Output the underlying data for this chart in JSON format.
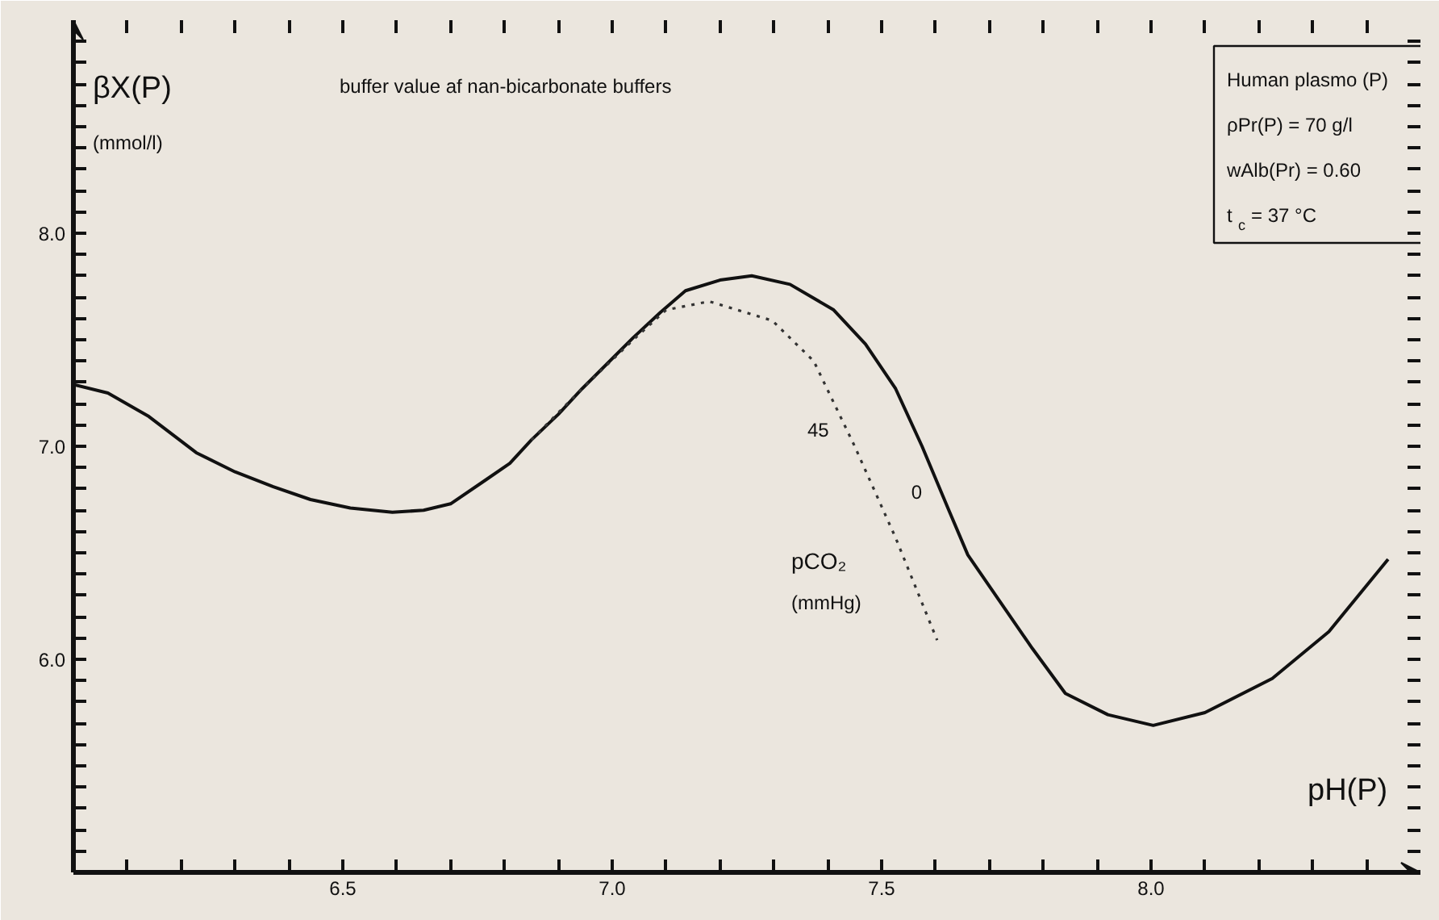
{
  "chart_data": {
    "type": "line",
    "title": "buffer value af nan-bicarbonate buffers",
    "xlabel": "pH(P)",
    "ylabel": "βX(P)\n(mmol/l)",
    "legend_title": "pCO₂\n(mmHg)",
    "annotations": [
      "Human plasmo (P)",
      "ρPr(P) = 70 g/l",
      "wAlb(Pr) = 0.60",
      "t$_{c}$ = 37 °C"
    ],
    "xlim": [
      6.0,
      8.5
    ],
    "ylim": [
      5.0,
      9.0
    ],
    "xticks": [
      {
        "value": 6.1,
        "label": null
      },
      {
        "value": 6.2,
        "label": null
      },
      {
        "value": 6.3,
        "label": null
      },
      {
        "value": 6.4,
        "label": null
      },
      {
        "value": 6.5,
        "label": "6.5"
      },
      {
        "value": 6.6,
        "label": null
      },
      {
        "value": 6.7,
        "label": null
      },
      {
        "value": 6.8,
        "label": null
      },
      {
        "value": 6.9,
        "label": null
      },
      {
        "value": 7.0,
        "label": "7.0"
      },
      {
        "value": 7.1,
        "label": null
      },
      {
        "value": 7.2,
        "label": null
      },
      {
        "value": 7.3,
        "label": null
      },
      {
        "value": 7.4,
        "label": null
      },
      {
        "value": 7.5,
        "label": "7.5"
      },
      {
        "value": 7.6,
        "label": null
      },
      {
        "value": 7.7,
        "label": null
      },
      {
        "value": 7.8,
        "label": null
      },
      {
        "value": 7.9,
        "label": null
      },
      {
        "value": 8.0,
        "label": "8.0"
      },
      {
        "value": 8.1,
        "label": null
      },
      {
        "value": 8.2,
        "label": null
      },
      {
        "value": 8.3,
        "label": null
      },
      {
        "value": 8.4,
        "label": null
      }
    ],
    "yticks": [
      {
        "value": 5.1,
        "label": null
      },
      {
        "value": 5.2,
        "label": null
      },
      {
        "value": 5.3,
        "label": null
      },
      {
        "value": 5.4,
        "label": null
      },
      {
        "value": 5.5,
        "label": null
      },
      {
        "value": 5.6,
        "label": null
      },
      {
        "value": 5.7,
        "label": null
      },
      {
        "value": 5.8,
        "label": null
      },
      {
        "value": 5.9,
        "label": null
      },
      {
        "value": 6.0,
        "label": "6.0"
      },
      {
        "value": 6.1,
        "label": null
      },
      {
        "value": 6.2,
        "label": null
      },
      {
        "value": 6.3,
        "label": null
      },
      {
        "value": 6.4,
        "label": null
      },
      {
        "value": 6.5,
        "label": null
      },
      {
        "value": 6.6,
        "label": null
      },
      {
        "value": 6.7,
        "label": null
      },
      {
        "value": 6.8,
        "label": null
      },
      {
        "value": 6.9,
        "label": null
      },
      {
        "value": 7.0,
        "label": "7.0"
      },
      {
        "value": 7.1,
        "label": null
      },
      {
        "value": 7.2,
        "label": null
      },
      {
        "value": 7.3,
        "label": null
      },
      {
        "value": 7.4,
        "label": null
      },
      {
        "value": 7.5,
        "label": null
      },
      {
        "value": 7.6,
        "label": null
      },
      {
        "value": 7.7,
        "label": null
      },
      {
        "value": 7.8,
        "label": null
      },
      {
        "value": 7.9,
        "label": null
      },
      {
        "value": 8.0,
        "label": "8.0"
      },
      {
        "value": 8.1,
        "label": null
      },
      {
        "value": 8.2,
        "label": null
      },
      {
        "value": 8.3,
        "label": null
      },
      {
        "value": 8.4,
        "label": null
      },
      {
        "value": 8.5,
        "label": null
      },
      {
        "value": 8.6,
        "label": null
      },
      {
        "value": 8.7,
        "label": null
      },
      {
        "value": 8.8,
        "label": null
      },
      {
        "value": 8.9,
        "label": null
      }
    ],
    "grid": false,
    "marker": "none",
    "series": [
      {
        "name": "0",
        "color": "#111111",
        "line_style": "solid",
        "x": [
          6.0,
          6.064,
          6.14,
          6.228,
          6.3,
          6.371,
          6.44,
          6.514,
          6.592,
          6.65,
          6.7,
          6.764,
          6.81,
          6.85,
          6.9,
          6.944,
          7.039,
          7.09,
          7.136,
          7.2,
          7.259,
          7.33,
          7.411,
          7.47,
          7.526,
          7.575,
          7.623,
          7.66,
          7.709,
          7.78,
          7.841,
          7.92,
          8.004,
          8.1,
          8.225,
          8.33,
          8.44
        ],
        "values": [
          7.29,
          7.25,
          7.14,
          6.97,
          6.88,
          6.81,
          6.75,
          6.71,
          6.69,
          6.7,
          6.73,
          6.84,
          6.92,
          7.03,
          7.15,
          7.27,
          7.51,
          7.63,
          7.73,
          7.78,
          7.8,
          7.76,
          7.64,
          7.48,
          7.27,
          7.0,
          6.71,
          6.49,
          6.31,
          6.05,
          5.84,
          5.74,
          5.69,
          5.75,
          5.91,
          6.13,
          6.47
        ]
      },
      {
        "name": "45",
        "color": "#333333",
        "line_style": "dotted",
        "x": [
          6.85,
          6.944,
          7.039,
          7.1,
          7.18,
          7.297,
          7.374,
          7.45,
          7.526,
          7.603
        ],
        "values": [
          7.03,
          7.27,
          7.5,
          7.64,
          7.68,
          7.59,
          7.4,
          7.0,
          6.57,
          6.09
        ]
      }
    ]
  }
}
